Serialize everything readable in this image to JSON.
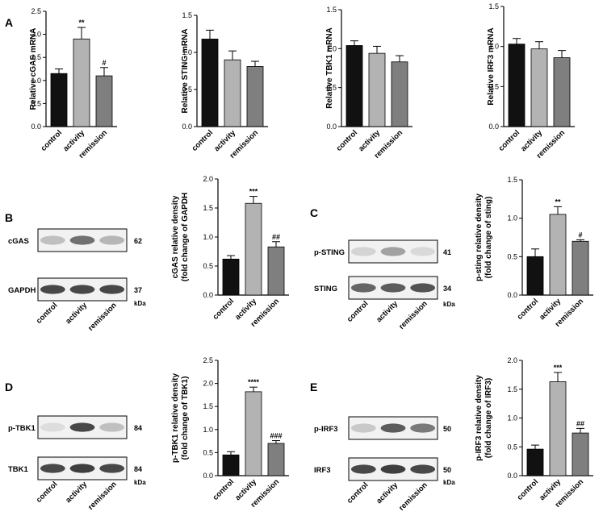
{
  "panel_labels": [
    "A",
    "B",
    "C",
    "D",
    "E"
  ],
  "colors": {
    "control": "#111111",
    "activity": "#b3b3b3",
    "remission": "#7f7f7f",
    "band": "#2a2a2a"
  },
  "kda_label": "kDa",
  "blots": [
    {
      "id": "B",
      "categories": [
        "control",
        "activity",
        "remission"
      ],
      "lanes": [
        {
          "label": "cGAS",
          "mw": "62",
          "intensities": [
            0.25,
            0.65,
            0.3
          ]
        },
        {
          "label": "GAPDH",
          "mw": "37",
          "intensities": [
            0.85,
            0.85,
            0.85
          ]
        }
      ]
    },
    {
      "id": "C",
      "categories": [
        "control",
        "activity",
        "remission"
      ],
      "lanes": [
        {
          "label": "p-STING",
          "mw": "41",
          "intensities": [
            0.15,
            0.4,
            0.12
          ]
        },
        {
          "label": "STING",
          "mw": "34",
          "intensities": [
            0.7,
            0.75,
            0.8
          ]
        }
      ]
    },
    {
      "id": "D",
      "categories": [
        "control",
        "activity",
        "remission"
      ],
      "lanes": [
        {
          "label": "p-TBK1",
          "mw": "84",
          "intensities": [
            0.1,
            0.85,
            0.25
          ]
        },
        {
          "label": "TBK1",
          "mw": "84",
          "intensities": [
            0.85,
            0.9,
            0.85
          ]
        }
      ]
    },
    {
      "id": "E",
      "categories": [
        "control",
        "activity",
        "remission"
      ],
      "lanes": [
        {
          "label": "p-IRF3",
          "mw": "50",
          "intensities": [
            0.2,
            0.75,
            0.6
          ]
        },
        {
          "label": "IRF3",
          "mw": "50",
          "intensities": [
            0.85,
            0.9,
            0.85
          ]
        }
      ]
    }
  ],
  "chart_data": [
    {
      "type": "bar",
      "id": "cgas-mrna",
      "ylabel": "Relative cGAS mRNA",
      "categories": [
        "control",
        "activity",
        "remission"
      ],
      "values": [
        1.15,
        1.9,
        1.1
      ],
      "errors": [
        0.1,
        0.25,
        0.18
      ],
      "significance": [
        "",
        "**",
        "#"
      ],
      "ylim": [
        0,
        2.5
      ],
      "yticks": [
        "0.0",
        "0.5",
        "1.0",
        "1.5",
        "2.0",
        "2.5"
      ]
    },
    {
      "type": "bar",
      "id": "sting-mrna",
      "ylabel": "Relative STING mRNA",
      "categories": [
        "control",
        "activity",
        "remission"
      ],
      "values": [
        1.18,
        0.9,
        0.81
      ],
      "errors": [
        0.12,
        0.12,
        0.07
      ],
      "significance": [
        "",
        "",
        ""
      ],
      "ylim": [
        0,
        1.5
      ],
      "yticks": [
        "0.0",
        "0.5",
        "1.0",
        "1.5"
      ]
    },
    {
      "type": "bar",
      "id": "tbk1-mrna",
      "ylabel": "Relative TBK1 mRNA",
      "categories": [
        "control",
        "activity",
        "remission"
      ],
      "values": [
        1.04,
        0.94,
        0.83
      ],
      "errors": [
        0.06,
        0.09,
        0.08
      ],
      "significance": [
        "",
        "",
        ""
      ],
      "ylim": [
        0,
        1.5
      ],
      "yticks": [
        "0.0",
        "0.5",
        "1.0",
        "1.5"
      ]
    },
    {
      "type": "bar",
      "id": "irf3-mrna",
      "ylabel": "Relative IRF3 mRNA",
      "categories": [
        "control",
        "activity",
        "remission"
      ],
      "values": [
        1.03,
        0.97,
        0.86
      ],
      "errors": [
        0.07,
        0.09,
        0.09
      ],
      "significance": [
        "",
        "",
        ""
      ],
      "ylim": [
        0,
        1.5
      ],
      "yticks": [
        "0.0",
        "0.5",
        "1.0",
        "1.5"
      ]
    },
    {
      "type": "bar",
      "id": "cgas-density",
      "ylabel": "cGAS relative density\n(fold change of GAPDH",
      "categories": [
        "control",
        "activity",
        "remission"
      ],
      "values": [
        0.62,
        1.58,
        0.83
      ],
      "errors": [
        0.06,
        0.12,
        0.09
      ],
      "significance": [
        "",
        "***",
        "##"
      ],
      "ylim": [
        0,
        2.0
      ],
      "yticks": [
        "0.0",
        "0.5",
        "1.0",
        "1.5",
        "2.0"
      ]
    },
    {
      "type": "bar",
      "id": "psting-density",
      "ylabel": "p-sting relative density\n(fold change of  sting)",
      "categories": [
        "control",
        "activity",
        "remission"
      ],
      "values": [
        0.5,
        1.05,
        0.7
      ],
      "errors": [
        0.1,
        0.1,
        0.02
      ],
      "significance": [
        "",
        "**",
        "#"
      ],
      "ylim": [
        0,
        1.5
      ],
      "yticks": [
        "0.0",
        "0.5",
        "1.0",
        "1.5"
      ]
    },
    {
      "type": "bar",
      "id": "ptbk1-density",
      "ylabel": "p-TBK1 relative density\n(fold change of TBK1)",
      "categories": [
        "control",
        "activity",
        "remission"
      ],
      "values": [
        0.45,
        1.82,
        0.7
      ],
      "errors": [
        0.07,
        0.1,
        0.06
      ],
      "significance": [
        "",
        "****",
        "###"
      ],
      "ylim": [
        0,
        2.5
      ],
      "yticks": [
        "0.0",
        "0.5",
        "1.0",
        "1.5",
        "2.0",
        "2.5"
      ]
    },
    {
      "type": "bar",
      "id": "pirf3-density",
      "ylabel": "p-IRF3 relative density\n(fold change of IRF3)",
      "categories": [
        "control",
        "activity",
        "remission"
      ],
      "values": [
        0.46,
        1.63,
        0.74
      ],
      "errors": [
        0.07,
        0.16,
        0.08
      ],
      "significance": [
        "",
        "***",
        "##"
      ],
      "ylim": [
        0,
        2.0
      ],
      "yticks": [
        "0.0",
        "0.5",
        "1.0",
        "1.5",
        "2.0"
      ]
    }
  ]
}
